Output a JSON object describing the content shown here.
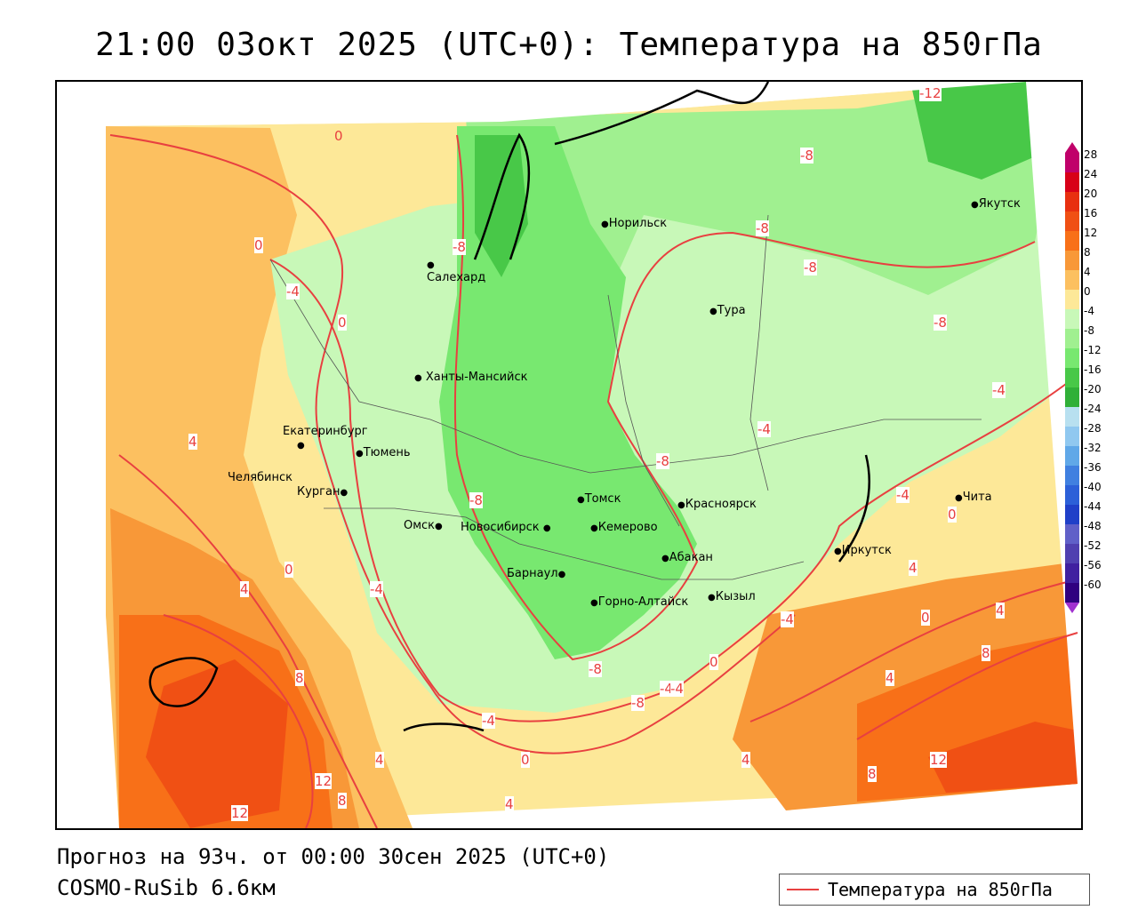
{
  "title": "21:00 03окт 2025 (UTC+0): Температура на 850гПа",
  "forecast": "Прогноз на 93ч. от 00:00 30сен 2025 (UTC+0)",
  "model": "COSMO-RuSib 6.6км",
  "legend": {
    "label": "Температура на 850гПа",
    "line_color": "#e84040"
  },
  "colorbar": {
    "levels": [
      "28",
      "24",
      "20",
      "16",
      "12",
      "8",
      "4",
      "0",
      "-4",
      "-8",
      "-12",
      "-16",
      "-20",
      "-24",
      "-28",
      "-32",
      "-36",
      "-40",
      "-44",
      "-48",
      "-52",
      "-56",
      "-60"
    ],
    "colors": [
      "#c0006a",
      "#d80018",
      "#e83010",
      "#f05014",
      "#f87018",
      "#f89838",
      "#fcc060",
      "#fde898",
      "#c8f8b8",
      "#a0f090",
      "#78e870",
      "#48c848",
      "#30b038",
      "#b8e0f0",
      "#90c8f0",
      "#60a8e8",
      "#4080e0",
      "#2c60d8",
      "#2040c8",
      "#6060c8",
      "#5040b0",
      "#4020a0",
      "#300080"
    ]
  },
  "cities": [
    {
      "name": "Норильск"
    },
    {
      "name": "Якутск"
    },
    {
      "name": "Салехард"
    },
    {
      "name": "Тура"
    },
    {
      "name": "Ханты-Мансийск"
    },
    {
      "name": "Екатеринбург"
    },
    {
      "name": "Тюмень"
    },
    {
      "name": "Челябинск"
    },
    {
      "name": "Курган"
    },
    {
      "name": "Омск"
    },
    {
      "name": "Новосибирск"
    },
    {
      "name": "Томск"
    },
    {
      "name": "Кемерово"
    },
    {
      "name": "Красноярск"
    },
    {
      "name": "Барнаул"
    },
    {
      "name": "Абакан"
    },
    {
      "name": "Горно-Алтайск"
    },
    {
      "name": "Кызыл"
    },
    {
      "name": "Иркутск"
    },
    {
      "name": "Чита"
    }
  ],
  "contour_labels": [
    "0",
    "0",
    "0",
    "-4",
    "-4",
    "-8",
    "-8",
    "-8",
    "-8",
    "-8",
    "-12",
    "-8",
    "-4",
    "-4",
    "-4",
    "-4",
    "4",
    "4",
    "4",
    "4",
    "8",
    "8",
    "8",
    "12",
    "12",
    "12",
    "-8",
    "-8",
    "-8",
    "-4",
    "-4",
    "0",
    "0",
    "0",
    "0",
    "4",
    "4",
    "4",
    "0",
    "-4",
    "8",
    "4"
  ]
}
